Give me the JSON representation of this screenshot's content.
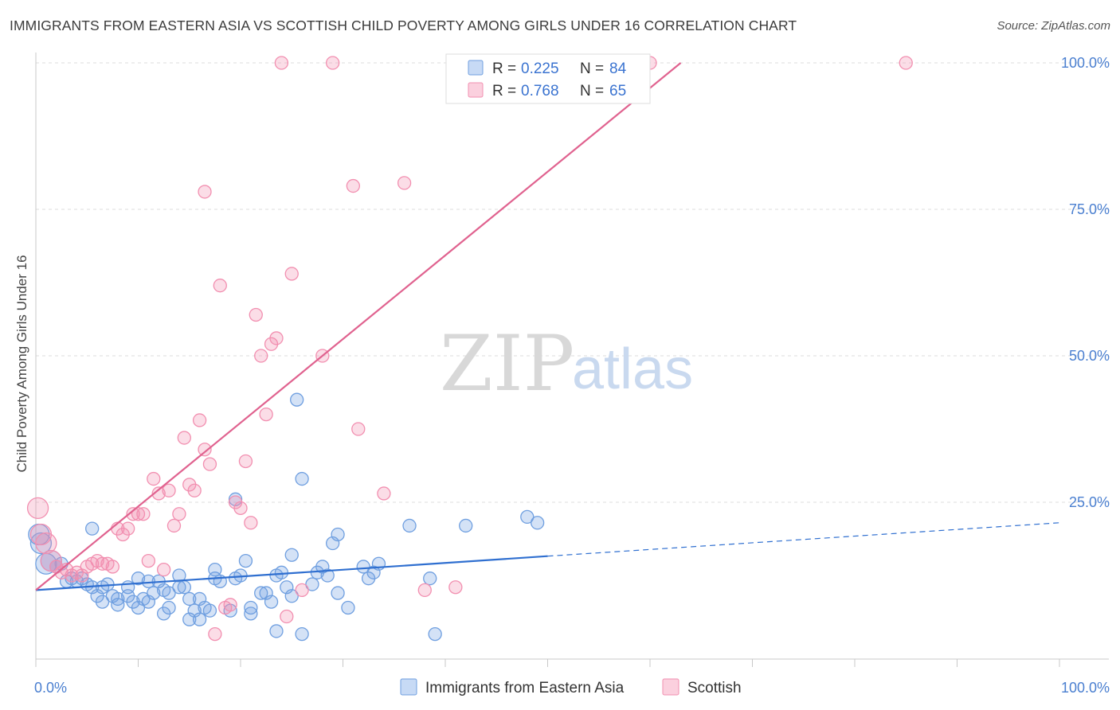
{
  "title": "IMMIGRANTS FROM EASTERN ASIA VS SCOTTISH CHILD POVERTY AMONG GIRLS UNDER 16 CORRELATION CHART",
  "source": "Source: ZipAtlas.com",
  "watermark": {
    "zip": "ZIP",
    "atlas": "atlas"
  },
  "colors": {
    "blue": "#6f9fe0",
    "blue_line": "#2f6fd0",
    "pink": "#f28fb0",
    "pink_line": "#e0628f",
    "tick": "#4a7fd0",
    "grid": "#dddddd"
  },
  "legend": {
    "items": [
      {
        "r_label": "R = ",
        "r_value": "0.225",
        "n_label": "N = ",
        "n_value": "84"
      },
      {
        "r_label": "R = ",
        "r_value": "0.768",
        "n_label": "N = ",
        "n_value": "65"
      }
    ]
  },
  "chart_data": {
    "type": "scatter",
    "title": "IMMIGRANTS FROM EASTERN ASIA VS SCOTTISH CHILD POVERTY AMONG GIRLS UNDER 16 CORRELATION CHART",
    "xlabel": "",
    "ylabel": "Child Poverty Among Girls Under 16",
    "xlim": [
      0,
      100
    ],
    "ylim": [
      0,
      100
    ],
    "x_tick_labels": [
      "0.0%",
      "100.0%"
    ],
    "y_tick_labels": [
      "25.0%",
      "50.0%",
      "75.0%",
      "100.0%"
    ],
    "y_ticks": [
      25,
      50,
      75,
      100
    ],
    "grid": true,
    "legend_position": "top-center",
    "series": [
      {
        "name": "Immigrants from Eastern Asia",
        "color": "#6f9fe0",
        "r": 0.225,
        "n": 84,
        "trend": {
          "x0": 0,
          "y0": 10.0,
          "x1": 50,
          "y1": 15.8,
          "dashed_to_x": 100,
          "dashed_to_y": 21.5
        },
        "points": [
          [
            0.3,
            19.5
          ],
          [
            0.5,
            18.0
          ],
          [
            1.0,
            14.5
          ],
          [
            1.5,
            15.0
          ],
          [
            2.0,
            14.0
          ],
          [
            2.5,
            14.5
          ],
          [
            3,
            11.5
          ],
          [
            3.5,
            12.0
          ],
          [
            4,
            11.5
          ],
          [
            4.5,
            12.0
          ],
          [
            5,
            11.0
          ],
          [
            5.5,
            10.5
          ],
          [
            5.5,
            20.5
          ],
          [
            6,
            9.0
          ],
          [
            6.5,
            10.5
          ],
          [
            6.5,
            8.0
          ],
          [
            7,
            11.0
          ],
          [
            7.5,
            9.0
          ],
          [
            8,
            8.5
          ],
          [
            8,
            7.5
          ],
          [
            9,
            9.0
          ],
          [
            9,
            10.5
          ],
          [
            9.5,
            8.0
          ],
          [
            10,
            7.0
          ],
          [
            10,
            12.0
          ],
          [
            10.5,
            8.5
          ],
          [
            11,
            8.0
          ],
          [
            11,
            11.5
          ],
          [
            11.5,
            9.5
          ],
          [
            12,
            11.5
          ],
          [
            12.5,
            10.0
          ],
          [
            12.5,
            6.0
          ],
          [
            13,
            9.5
          ],
          [
            13,
            7.0
          ],
          [
            14,
            10.5
          ],
          [
            14,
            12.5
          ],
          [
            14.5,
            10.5
          ],
          [
            15,
            8.5
          ],
          [
            15,
            5.0
          ],
          [
            15.5,
            6.5
          ],
          [
            16,
            5.0
          ],
          [
            16,
            8.5
          ],
          [
            16.5,
            7.0
          ],
          [
            17,
            6.5
          ],
          [
            17.5,
            12.0
          ],
          [
            17.5,
            13.5
          ],
          [
            18,
            11.5
          ],
          [
            19,
            6.5
          ],
          [
            19.5,
            25.5
          ],
          [
            19.5,
            12.0
          ],
          [
            20,
            12.5
          ],
          [
            20.5,
            15.0
          ],
          [
            21,
            7.0
          ],
          [
            21,
            6.0
          ],
          [
            22,
            9.5
          ],
          [
            22.5,
            9.5
          ],
          [
            23,
            8.0
          ],
          [
            23.5,
            12.5
          ],
          [
            23.5,
            3.0
          ],
          [
            24,
            13.0
          ],
          [
            24.5,
            10.5
          ],
          [
            25,
            16.0
          ],
          [
            25,
            9.0
          ],
          [
            25.5,
            42.5
          ],
          [
            26,
            29.0
          ],
          [
            26,
            2.5
          ],
          [
            27,
            11.0
          ],
          [
            27.5,
            13.0
          ],
          [
            28,
            14.0
          ],
          [
            28.5,
            12.5
          ],
          [
            29,
            18.0
          ],
          [
            29.5,
            19.5
          ],
          [
            29.5,
            9.5
          ],
          [
            30.5,
            7.0
          ],
          [
            32,
            14.0
          ],
          [
            32.5,
            12.0
          ],
          [
            33,
            13.0
          ],
          [
            33.5,
            14.5
          ],
          [
            36.5,
            21.0
          ],
          [
            38.5,
            12.0
          ],
          [
            39,
            2.5
          ],
          [
            42,
            21.0
          ],
          [
            48,
            22.5
          ],
          [
            49,
            21.5
          ]
        ]
      },
      {
        "name": "Scottish",
        "color": "#f28fb0",
        "r": 0.768,
        "n": 65,
        "trend": {
          "x0": 0,
          "y0": 10.0,
          "x1": 63,
          "y1": 100.0
        },
        "points": [
          [
            0.2,
            24.0
          ],
          [
            0.5,
            19.5
          ],
          [
            1.0,
            18.0
          ],
          [
            1.5,
            15.0
          ],
          [
            2.0,
            14.0
          ],
          [
            2.5,
            13.0
          ],
          [
            3,
            13.5
          ],
          [
            3.5,
            12.5
          ],
          [
            4,
            13.0
          ],
          [
            4.5,
            12.5
          ],
          [
            5,
            14.0
          ],
          [
            5.5,
            14.5
          ],
          [
            6,
            15.0
          ],
          [
            6.5,
            14.5
          ],
          [
            7,
            14.5
          ],
          [
            7.5,
            14.0
          ],
          [
            8,
            20.5
          ],
          [
            8.5,
            19.5
          ],
          [
            9,
            20.5
          ],
          [
            9.5,
            23.0
          ],
          [
            10,
            23.0
          ],
          [
            10.5,
            23.0
          ],
          [
            11,
            15.0
          ],
          [
            11.5,
            29.0
          ],
          [
            12,
            26.5
          ],
          [
            12.5,
            13.5
          ],
          [
            13,
            27.0
          ],
          [
            13.5,
            21.0
          ],
          [
            14,
            23.0
          ],
          [
            14.5,
            36.0
          ],
          [
            15,
            28.0
          ],
          [
            15.5,
            27.0
          ],
          [
            16,
            39.0
          ],
          [
            16.5,
            34.0
          ],
          [
            16.5,
            78.0
          ],
          [
            17,
            31.5
          ],
          [
            17.5,
            2.5
          ],
          [
            18,
            62.0
          ],
          [
            18.5,
            7.0
          ],
          [
            19,
            7.5
          ],
          [
            19.5,
            25.0
          ],
          [
            20,
            24.0
          ],
          [
            20.5,
            32.0
          ],
          [
            21,
            21.5
          ],
          [
            21.5,
            57.0
          ],
          [
            22,
            50.0
          ],
          [
            22.5,
            40.0
          ],
          [
            23,
            52.0
          ],
          [
            23.5,
            53.0
          ],
          [
            24,
            100.0
          ],
          [
            24.5,
            5.5
          ],
          [
            25,
            64.0
          ],
          [
            26,
            10.0
          ],
          [
            28,
            50.0
          ],
          [
            29,
            100.0
          ],
          [
            31,
            79.0
          ],
          [
            31.5,
            37.5
          ],
          [
            34,
            26.5
          ],
          [
            36,
            79.5
          ],
          [
            38,
            10.0
          ],
          [
            41,
            10.5
          ],
          [
            47,
            100.0
          ],
          [
            58,
            100.0
          ],
          [
            85,
            100.0
          ],
          [
            60,
            100.0
          ]
        ]
      }
    ]
  },
  "bottom_legend": {
    "items": [
      {
        "label": "Immigrants from Eastern Asia"
      },
      {
        "label": "Scottish"
      }
    ]
  }
}
